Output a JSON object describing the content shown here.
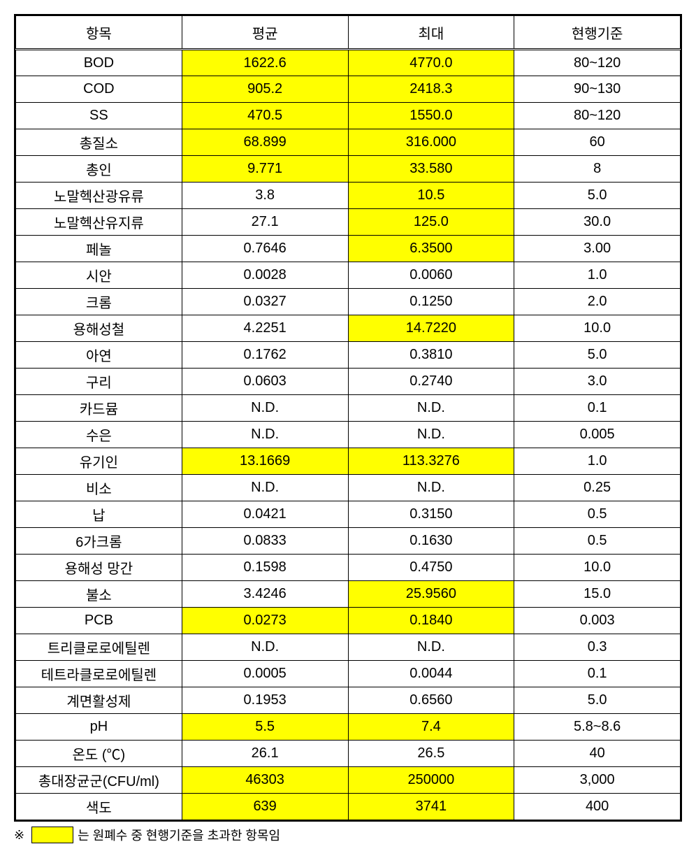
{
  "table": {
    "type": "table",
    "columns": [
      "항목",
      "평균",
      "최대",
      "현행기준"
    ],
    "highlight_color": "#ffff00",
    "background_color": "#ffffff",
    "border_color": "#000000",
    "font_size": 20,
    "rows": [
      {
        "label": "BOD",
        "avg": "1622.6",
        "avg_hl": true,
        "max": "4770.0",
        "max_hl": true,
        "std": "80~120"
      },
      {
        "label": "COD",
        "avg": "905.2",
        "avg_hl": true,
        "max": "2418.3",
        "max_hl": true,
        "std": "90~130"
      },
      {
        "label": "SS",
        "avg": "470.5",
        "avg_hl": true,
        "max": "1550.0",
        "max_hl": true,
        "std": "80~120"
      },
      {
        "label": "총질소",
        "avg": "68.899",
        "avg_hl": true,
        "max": "316.000",
        "max_hl": true,
        "std": "60"
      },
      {
        "label": "총인",
        "avg": "9.771",
        "avg_hl": true,
        "max": "33.580",
        "max_hl": true,
        "std": "8"
      },
      {
        "label": "노말헥산광유류",
        "avg": "3.8",
        "avg_hl": false,
        "max": "10.5",
        "max_hl": true,
        "std": "5.0"
      },
      {
        "label": "노말헥산유지류",
        "avg": "27.1",
        "avg_hl": false,
        "max": "125.0",
        "max_hl": true,
        "std": "30.0"
      },
      {
        "label": "페놀",
        "avg": "0.7646",
        "avg_hl": false,
        "max": "6.3500",
        "max_hl": true,
        "std": "3.00"
      },
      {
        "label": "시안",
        "avg": "0.0028",
        "avg_hl": false,
        "max": "0.0060",
        "max_hl": false,
        "std": "1.0"
      },
      {
        "label": "크롬",
        "avg": "0.0327",
        "avg_hl": false,
        "max": "0.1250",
        "max_hl": false,
        "std": "2.0"
      },
      {
        "label": "용해성철",
        "avg": "4.2251",
        "avg_hl": false,
        "max": "14.7220",
        "max_hl": true,
        "std": "10.0"
      },
      {
        "label": "아연",
        "avg": "0.1762",
        "avg_hl": false,
        "max": "0.3810",
        "max_hl": false,
        "std": "5.0"
      },
      {
        "label": "구리",
        "avg": "0.0603",
        "avg_hl": false,
        "max": "0.2740",
        "max_hl": false,
        "std": "3.0"
      },
      {
        "label": "카드뮴",
        "avg": "N.D.",
        "avg_hl": false,
        "max": "N.D.",
        "max_hl": false,
        "std": "0.1"
      },
      {
        "label": "수은",
        "avg": "N.D.",
        "avg_hl": false,
        "max": "N.D.",
        "max_hl": false,
        "std": "0.005"
      },
      {
        "label": "유기인",
        "avg": "13.1669",
        "avg_hl": true,
        "max": "113.3276",
        "max_hl": true,
        "std": "1.0"
      },
      {
        "label": "비소",
        "avg": "N.D.",
        "avg_hl": false,
        "max": "N.D.",
        "max_hl": false,
        "std": "0.25"
      },
      {
        "label": "납",
        "avg": "0.0421",
        "avg_hl": false,
        "max": "0.3150",
        "max_hl": false,
        "std": "0.5"
      },
      {
        "label": "6가크롬",
        "avg": "0.0833",
        "avg_hl": false,
        "max": "0.1630",
        "max_hl": false,
        "std": "0.5"
      },
      {
        "label": "용해성 망간",
        "avg": "0.1598",
        "avg_hl": false,
        "max": "0.4750",
        "max_hl": false,
        "std": "10.0"
      },
      {
        "label": "불소",
        "avg": "3.4246",
        "avg_hl": false,
        "max": "25.9560",
        "max_hl": true,
        "std": "15.0"
      },
      {
        "label": "PCB",
        "avg": "0.0273",
        "avg_hl": true,
        "max": "0.1840",
        "max_hl": true,
        "std": "0.003"
      },
      {
        "label": "트리클로로에틸렌",
        "avg": "N.D.",
        "avg_hl": false,
        "max": "N.D.",
        "max_hl": false,
        "std": "0.3"
      },
      {
        "label": "테트라클로로에틸렌",
        "avg": "0.0005",
        "avg_hl": false,
        "max": "0.0044",
        "max_hl": false,
        "std": "0.1"
      },
      {
        "label": "계면활성제",
        "avg": "0.1953",
        "avg_hl": false,
        "max": "0.6560",
        "max_hl": false,
        "std": "5.0"
      },
      {
        "label": "pH",
        "avg": "5.5",
        "avg_hl": true,
        "max": "7.4",
        "max_hl": true,
        "std": "5.8~8.6"
      },
      {
        "label": "온도 (℃)",
        "avg": "26.1",
        "avg_hl": false,
        "max": "26.5",
        "max_hl": false,
        "std": "40"
      },
      {
        "label": "총대장균군(CFU/ml)",
        "avg": "46303",
        "avg_hl": true,
        "max": "250000",
        "max_hl": true,
        "std": "3,000"
      },
      {
        "label": "색도",
        "avg": "639",
        "avg_hl": true,
        "max": "3741",
        "max_hl": true,
        "std": "400"
      }
    ]
  },
  "footnote": {
    "prefix": "※",
    "text": "는 원폐수 중 현행기준을 초과한 항목임"
  }
}
